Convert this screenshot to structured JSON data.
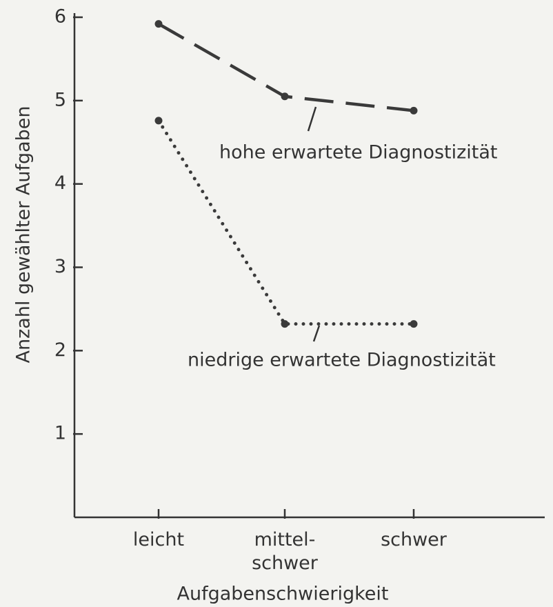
{
  "chart_data": {
    "type": "line",
    "xlabel": "Aufgabenschwierigkeit",
    "ylabel": "Anzahl gewählter Aufgaben",
    "categories": [
      "leicht",
      "mittel-\nschwer",
      "schwer"
    ],
    "series": [
      {
        "name": "hohe erwartete Diagnostizität",
        "color": "#3a3a3a",
        "style": "dashed",
        "values": [
          5.92,
          5.05,
          4.88
        ]
      },
      {
        "name": "niedrige erwartete Diagnostizität",
        "color": "#3a3a3a",
        "style": "dotted",
        "values": [
          4.76,
          2.32,
          2.32
        ]
      }
    ],
    "ylim": [
      0,
      6
    ],
    "yticks": [
      1,
      2,
      3,
      4,
      5,
      6
    ]
  }
}
